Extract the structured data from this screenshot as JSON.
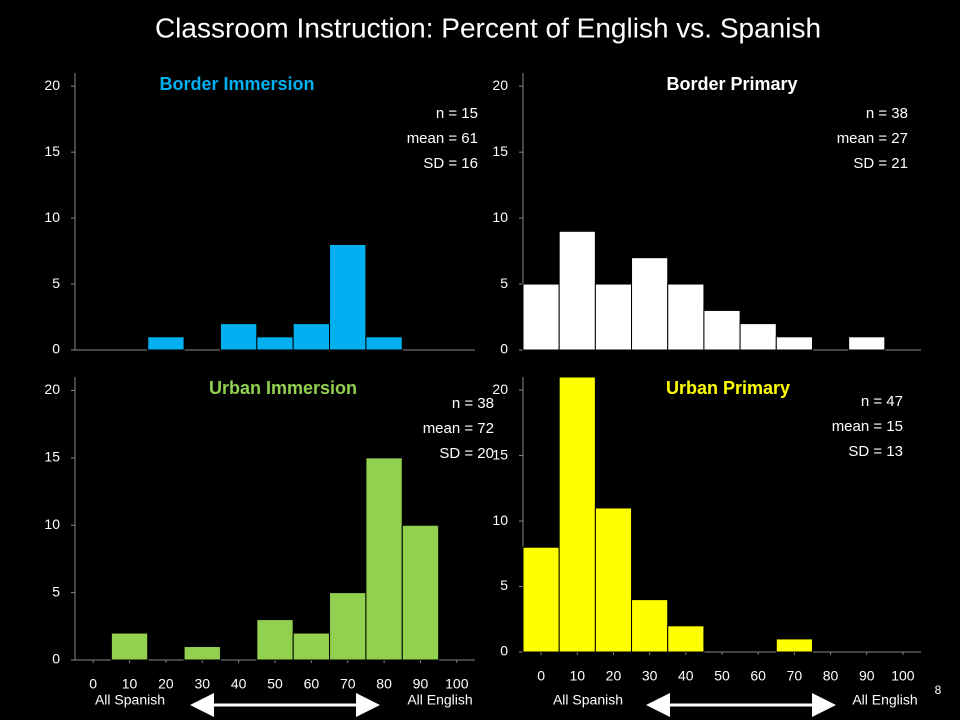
{
  "title": "Classroom Instruction: Percent of English vs. Spanish",
  "page_number": 8,
  "chart_data": [
    {
      "type": "histogram",
      "title": "Border Immersion",
      "title_color": "#00b0f0",
      "color": "#00b0f0",
      "bins": [
        -5,
        5,
        15,
        25,
        35,
        45,
        55,
        65,
        75,
        85,
        95,
        105
      ],
      "values": [
        0,
        0,
        1,
        0,
        2,
        1,
        2,
        8,
        1,
        0,
        0
      ],
      "xlim": [
        -5,
        105
      ],
      "ylim": [
        0,
        21
      ],
      "yticks": [
        0,
        5,
        10,
        15,
        20
      ],
      "annotations": [
        "n = 15",
        "mean = 61",
        "SD = 16"
      ]
    },
    {
      "type": "histogram",
      "title": "Border Primary",
      "title_color": "#ffffff",
      "color": "#ffffff",
      "bins": [
        -5,
        5,
        15,
        25,
        35,
        45,
        55,
        65,
        75,
        85,
        95,
        105
      ],
      "values": [
        5,
        9,
        5,
        7,
        5,
        3,
        2,
        1,
        0,
        1,
        0
      ],
      "xlim": [
        -5,
        105
      ],
      "ylim": [
        0,
        21
      ],
      "yticks": [
        0,
        5,
        10,
        15,
        20
      ],
      "annotations": [
        "n = 38",
        "mean = 27",
        "SD = 21"
      ]
    },
    {
      "type": "histogram",
      "title": "Urban Immersion",
      "title_color": "#92d050",
      "color": "#92d050",
      "bins": [
        -5,
        5,
        15,
        25,
        35,
        45,
        55,
        65,
        75,
        85,
        95,
        105
      ],
      "values": [
        0,
        2,
        0,
        1,
        0,
        3,
        2,
        5,
        15,
        10,
        0
      ],
      "xlim": [
        -5,
        105
      ],
      "ylim": [
        0,
        21
      ],
      "yticks": [
        0,
        5,
        10,
        15,
        20
      ],
      "xticks": [
        0,
        10,
        20,
        30,
        40,
        50,
        60,
        70,
        80,
        90,
        100
      ],
      "xlabel_left": "All Spanish",
      "xlabel_right": "All English",
      "annotations": [
        "n = 38",
        "mean = 72",
        "SD = 20"
      ]
    },
    {
      "type": "histogram",
      "title": "Urban Primary",
      "title_color": "#ffff00",
      "color": "#ffff00",
      "bins": [
        -5,
        5,
        15,
        25,
        35,
        45,
        55,
        65,
        75,
        85,
        95,
        105
      ],
      "values": [
        8,
        21,
        11,
        4,
        2,
        0,
        0,
        1,
        0,
        0,
        0
      ],
      "xlim": [
        -5,
        105
      ],
      "ylim": [
        0,
        21
      ],
      "yticks": [
        0,
        5,
        10,
        15,
        20
      ],
      "xticks": [
        0,
        10,
        20,
        30,
        40,
        50,
        60,
        70,
        80,
        90,
        100
      ],
      "xlabel_left": "All Spanish",
      "xlabel_right": "All English",
      "annotations": [
        "n = 47",
        "mean = 15",
        "SD = 13"
      ]
    }
  ]
}
